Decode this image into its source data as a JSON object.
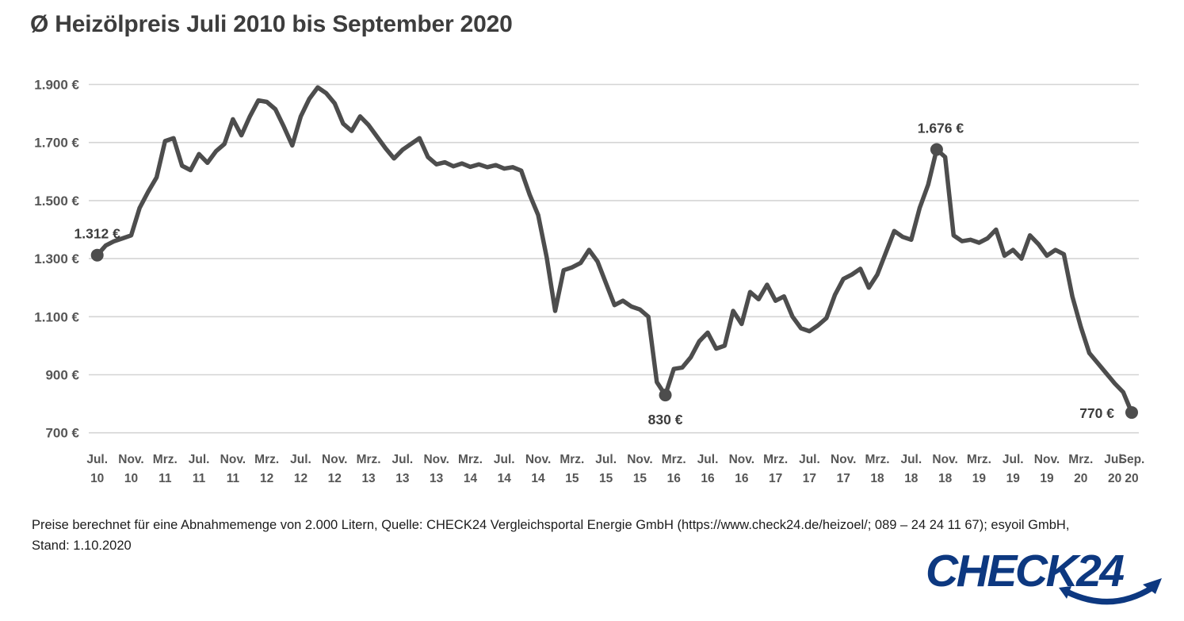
{
  "title": "Ø Heizölpreis Juli 2010 bis September 2020",
  "footer": {
    "line1": "Preise berechnet für eine Abnahmemenge von 2.000 Litern, Quelle: CHECK24 Vergleichsportal Energie GmbH (https://www.check24.de/heizoel/; 089 – 24 24 11 67); esyoil GmbH,",
    "line2": "Stand: 1.10.2020"
  },
  "logo": {
    "text": "CHECK24",
    "color": "#0d3880"
  },
  "colors": {
    "line": "#4d4d4d",
    "grid": "#d4d4d4",
    "axis_text": "#565656",
    "title_text": "#3d3d3d"
  },
  "chart_data": {
    "type": "line",
    "title": "Ø Heizölpreis Juli 2010 bis September 2020",
    "unit": "€ pro 2.000 Liter",
    "ylim": [
      700,
      1900
    ],
    "grid": true,
    "x_start": "Jul. 2010",
    "x_end": "Sep. 2020",
    "y_ticks": [
      {
        "value": 1900,
        "label": "1.900 €"
      },
      {
        "value": 1700,
        "label": "1.700 €"
      },
      {
        "value": 1500,
        "label": "1.500 €"
      },
      {
        "value": 1300,
        "label": "1.300 €"
      },
      {
        "value": 1100,
        "label": "1.100 €"
      },
      {
        "value": 900,
        "label": "900 €"
      },
      {
        "value": 700,
        "label": "700 €"
      }
    ],
    "x_ticks": [
      {
        "m": 0,
        "month": "Jul.",
        "year": "10"
      },
      {
        "m": 4,
        "month": "Nov.",
        "year": "10"
      },
      {
        "m": 8,
        "month": "Mrz.",
        "year": "11"
      },
      {
        "m": 12,
        "month": "Jul.",
        "year": "11"
      },
      {
        "m": 16,
        "month": "Nov.",
        "year": "11"
      },
      {
        "m": 20,
        "month": "Mrz.",
        "year": "12"
      },
      {
        "m": 24,
        "month": "Jul.",
        "year": "12"
      },
      {
        "m": 28,
        "month": "Nov.",
        "year": "12"
      },
      {
        "m": 32,
        "month": "Mrz.",
        "year": "13"
      },
      {
        "m": 36,
        "month": "Jul.",
        "year": "13"
      },
      {
        "m": 40,
        "month": "Nov.",
        "year": "13"
      },
      {
        "m": 44,
        "month": "Mrz.",
        "year": "14"
      },
      {
        "m": 48,
        "month": "Jul.",
        "year": "14"
      },
      {
        "m": 52,
        "month": "Nov.",
        "year": "14"
      },
      {
        "m": 56,
        "month": "Mrz.",
        "year": "15"
      },
      {
        "m": 60,
        "month": "Jul.",
        "year": "15"
      },
      {
        "m": 64,
        "month": "Nov.",
        "year": "15"
      },
      {
        "m": 68,
        "month": "Mrz.",
        "year": "16"
      },
      {
        "m": 72,
        "month": "Jul.",
        "year": "16"
      },
      {
        "m": 76,
        "month": "Nov.",
        "year": "16"
      },
      {
        "m": 80,
        "month": "Mrz.",
        "year": "17"
      },
      {
        "m": 84,
        "month": "Jul.",
        "year": "17"
      },
      {
        "m": 88,
        "month": "Nov.",
        "year": "17"
      },
      {
        "m": 92,
        "month": "Mrz.",
        "year": "18"
      },
      {
        "m": 96,
        "month": "Jul.",
        "year": "18"
      },
      {
        "m": 100,
        "month": "Nov.",
        "year": "18"
      },
      {
        "m": 104,
        "month": "Mrz.",
        "year": "19"
      },
      {
        "m": 108,
        "month": "Jul.",
        "year": "19"
      },
      {
        "m": 112,
        "month": "Nov.",
        "year": "19"
      },
      {
        "m": 116,
        "month": "Mrz.",
        "year": "20"
      },
      {
        "m": 120,
        "month": "Jul.",
        "year": "20"
      },
      {
        "m": 122,
        "month": "Sep.",
        "year": "20"
      }
    ],
    "months": "monthly values from Jul 2010 to Sep 2020",
    "values": [
      1312,
      1345,
      1360,
      1370,
      1380,
      1475,
      1530,
      1580,
      1705,
      1715,
      1620,
      1605,
      1660,
      1630,
      1670,
      1695,
      1780,
      1725,
      1790,
      1845,
      1840,
      1815,
      1755,
      1690,
      1790,
      1850,
      1890,
      1870,
      1835,
      1765,
      1740,
      1790,
      1760,
      1720,
      1680,
      1645,
      1675,
      1695,
      1715,
      1650,
      1625,
      1632,
      1618,
      1628,
      1616,
      1625,
      1615,
      1622,
      1610,
      1615,
      1603,
      1520,
      1450,
      1305,
      1120,
      1260,
      1270,
      1285,
      1330,
      1290,
      1215,
      1140,
      1155,
      1135,
      1125,
      1100,
      875,
      830,
      920,
      925,
      960,
      1015,
      1045,
      990,
      1000,
      1120,
      1075,
      1185,
      1160,
      1210,
      1155,
      1170,
      1100,
      1060,
      1050,
      1070,
      1095,
      1175,
      1230,
      1245,
      1265,
      1200,
      1245,
      1320,
      1395,
      1375,
      1365,
      1475,
      1555,
      1676,
      1650,
      1380,
      1360,
      1365,
      1355,
      1370,
      1400,
      1310,
      1330,
      1300,
      1380,
      1350,
      1310,
      1330,
      1315,
      1170,
      1065,
      975,
      940,
      905,
      870,
      840,
      770
    ],
    "annotations": [
      {
        "index": 0,
        "label": "1.312 €",
        "pos": "above"
      },
      {
        "index": 67,
        "label": "830 €",
        "pos": "below"
      },
      {
        "index": 99,
        "label": "1.676 €",
        "pos": "above"
      },
      {
        "index": 122,
        "label": "770 €",
        "pos": "left"
      }
    ]
  }
}
